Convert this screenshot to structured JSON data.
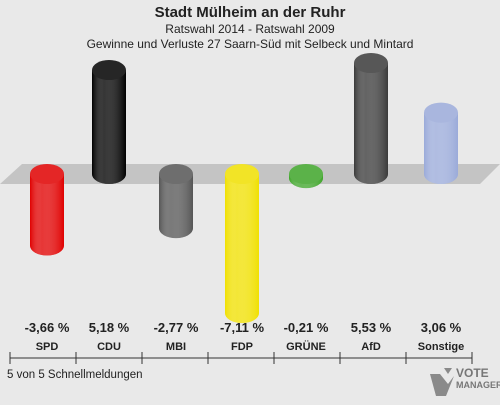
{
  "header": {
    "title": "Stadt Mülheim an der Ruhr",
    "subtitle": "Ratswahl 2014 - Ratswahl 2009",
    "subtitle2": "Gewinne und Verluste 27 Saarn-Süd mit Selbeck und Mintard"
  },
  "footer": {
    "status": "5 von 5 Schnellmeldungen"
  },
  "logo": {
    "text": "VOTE",
    "subtext": "MANAGER"
  },
  "chart_data": {
    "type": "bar",
    "title": "Gewinne und Verluste 27 Saarn-Süd mit Selbeck und Mintard",
    "categories": [
      "SPD",
      "CDU",
      "MBI",
      "FDP",
      "GRÜNE",
      "AfD",
      "Sonstige"
    ],
    "values": [
      -3.66,
      5.18,
      -2.77,
      -7.11,
      -0.21,
      5.53,
      3.06
    ],
    "value_labels": [
      "-3,66 %",
      "5,18 %",
      "-2,77 %",
      "-7,11 %",
      "-0,21 %",
      "5,53 %",
      "3,06 %"
    ],
    "colors": [
      "#e00000",
      "#000000",
      "#555555",
      "#f0e000",
      "#3fa52a",
      "#3a3a3a",
      "#9aaad9"
    ],
    "ylim": [
      -7.11,
      5.53
    ],
    "grid": false,
    "legend": "none"
  }
}
